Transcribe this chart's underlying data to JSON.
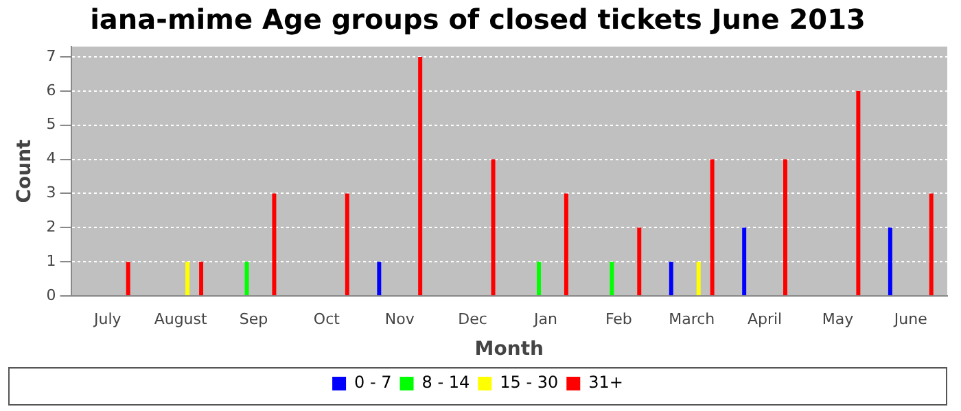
{
  "chart_data": {
    "type": "bar",
    "title": "iana-mime Age groups of closed tickets June 2013",
    "xlabel": "Month",
    "ylabel": "Count",
    "categories": [
      "July",
      "August",
      "Sep",
      "Oct",
      "Nov",
      "Dec",
      "Jan",
      "Feb",
      "March",
      "April",
      "May",
      "June"
    ],
    "series": [
      {
        "name": "0 - 7",
        "color": "#0000ff",
        "values": [
          null,
          null,
          null,
          null,
          1,
          null,
          null,
          null,
          1,
          2,
          null,
          2
        ]
      },
      {
        "name": "8 - 14",
        "color": "#00ff00",
        "values": [
          null,
          null,
          1,
          null,
          null,
          null,
          1,
          1,
          null,
          null,
          null,
          null
        ]
      },
      {
        "name": "15 - 30",
        "color": "#ffff00",
        "values": [
          null,
          1,
          null,
          null,
          null,
          null,
          null,
          null,
          1,
          null,
          null,
          null
        ]
      },
      {
        "name": "31+",
        "color": "#ff0000",
        "values": [
          1,
          1,
          3,
          3,
          7,
          4,
          3,
          2,
          4,
          4,
          6,
          3
        ]
      }
    ],
    "ylim": [
      0,
      7.3
    ],
    "yticks": [
      0,
      1,
      2,
      3,
      4,
      5,
      6,
      7
    ],
    "grid": "y",
    "legend": "bottom"
  }
}
